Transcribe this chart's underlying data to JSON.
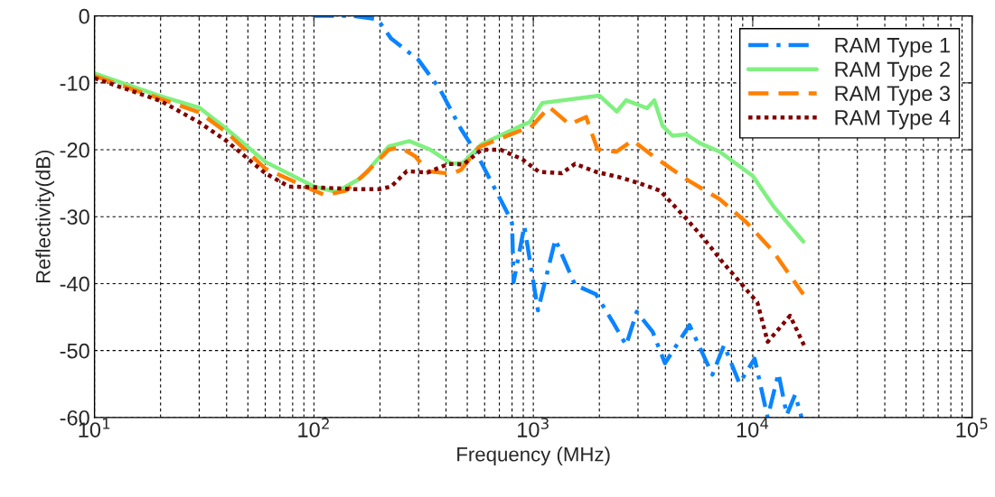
{
  "chart_data": {
    "type": "line",
    "xlabel": "Frequency (MHz)",
    "ylabel": "Reflectivity(dB)",
    "log": "x",
    "xlim": [
      10,
      100000
    ],
    "xticks": [
      {
        "value": 10,
        "label": "10$^{1}$"
      },
      {
        "value": 100,
        "label": "10$^{2}$"
      },
      {
        "value": 1000,
        "label": "10$^{3}$"
      },
      {
        "value": 10000,
        "label": "10$^{4}$"
      },
      {
        "value": 100000,
        "label": "10$^{5}$"
      }
    ],
    "ylim": [
      -60,
      0
    ],
    "yticks": [
      -60,
      -50,
      -40,
      -30,
      -20,
      -10,
      0
    ],
    "grid": true,
    "legend": "top right",
    "series": [
      {
        "name": "RAM Type 1",
        "color": "#0a84ff",
        "line_style": "dashdot",
        "x": [
          100,
          150,
          195,
          225,
          300,
          376,
          468,
          550,
          660,
          775,
          800,
          813,
          910,
          1050,
          1260,
          1550,
          1930,
          2300,
          2650,
          2960,
          3500,
          3980,
          5150,
          6550,
          7400,
          8700,
          10200,
          11700,
          13100,
          14300,
          15600,
          16700
        ],
        "values": [
          0,
          0,
          -0.5,
          -3.4,
          -6.6,
          -11,
          -16.9,
          -20.5,
          -25.5,
          -29.9,
          -31,
          -39.8,
          -31.4,
          -44,
          -33.4,
          -40.2,
          -41.6,
          -45.7,
          -49.2,
          -44.2,
          -47.2,
          -51.9,
          -46.2,
          -53.6,
          -49.2,
          -54.9,
          -51.2,
          -60,
          -53.4,
          -59.6,
          -56.6,
          -60
        ]
      },
      {
        "name": "RAM Type 2",
        "color": "#80f080",
        "line_style": "solid",
        "x": [
          10,
          20,
          30,
          40,
          60,
          100,
          127,
          166,
          219,
          272,
          340,
          425,
          480,
          580,
          910,
          960,
          1100,
          2000,
          2400,
          2650,
          3300,
          3560,
          3880,
          4310,
          4980,
          5730,
          7080,
          10000,
          12400,
          17000
        ],
        "values": [
          -8.6,
          -12,
          -13.7,
          -16.9,
          -21.8,
          -25.5,
          -26.3,
          -24.1,
          -19.5,
          -18.7,
          -20,
          -22.1,
          -21.9,
          -19.2,
          -16.2,
          -15.9,
          -13,
          -11.9,
          -14.3,
          -12.6,
          -13.8,
          -12.6,
          -16.4,
          -17.9,
          -17.7,
          -19,
          -20.3,
          -23.9,
          -28.4,
          -33.7
        ]
      },
      {
        "name": "RAM Type 3",
        "color": "#ff8000",
        "line_style": "dashed",
        "x": [
          10,
          20,
          30,
          40,
          60,
          100,
          113,
          140,
          176,
          219,
          247,
          290,
          330,
          425,
          468,
          565,
          910,
          960,
          1180,
          1460,
          1740,
          1960,
          2390,
          2840,
          3500,
          4980,
          7080,
          9400,
          12400,
          17000
        ],
        "values": [
          -9,
          -12.4,
          -14.4,
          -17.4,
          -22.8,
          -26.1,
          -26.8,
          -26.1,
          -23.2,
          -20,
          -19.6,
          -21,
          -23.2,
          -23.6,
          -23,
          -19.6,
          -16.9,
          -16.9,
          -13.6,
          -16.2,
          -15.1,
          -19.9,
          -20.3,
          -18.6,
          -20.9,
          -24.4,
          -27.4,
          -30.9,
          -35.2,
          -41.6
        ]
      },
      {
        "name": "RAM Type 4",
        "color": "#800000",
        "line_style": "dotted",
        "x": [
          10,
          20,
          30,
          40,
          60,
          77,
          100,
          155,
          198,
          225,
          265,
          330,
          410,
          480,
          580,
          710,
          890,
          1060,
          1350,
          1550,
          1930,
          2460,
          3040,
          3780,
          4980,
          5960,
          7340,
          8700,
          10500,
          11700,
          14800,
          17300
        ],
        "values": [
          -9.3,
          -12.7,
          -15.9,
          -18.7,
          -23.5,
          -25.5,
          -25.6,
          -25.9,
          -25.9,
          -25.5,
          -23.2,
          -23.4,
          -22.1,
          -22.2,
          -20,
          -20,
          -21.4,
          -23.3,
          -23.5,
          -22.1,
          -23.3,
          -24.1,
          -25,
          -26.1,
          -30.3,
          -33.2,
          -36.9,
          -39.7,
          -42.8,
          -48.7,
          -44.8,
          -49.5
        ]
      }
    ]
  }
}
